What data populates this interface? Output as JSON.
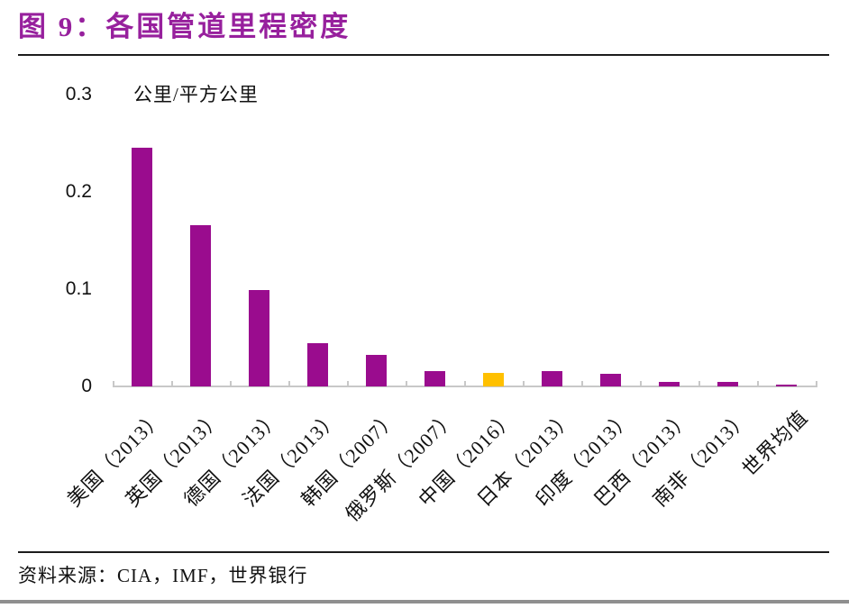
{
  "figure": {
    "title": "图 9：各国管道里程密度",
    "source_note": "资料来源：CIA，IMF，世界银行"
  },
  "chart_data": {
    "type": "bar",
    "title": "各国管道里程密度",
    "unit_label": "公里/平方公里",
    "ylabel": "公里/平方公里",
    "ylim": [
      0,
      0.3
    ],
    "y_tick_labels": [
      "0",
      "0.1",
      "0.2",
      "0.3"
    ],
    "grid": false,
    "legend": "none",
    "categories": [
      "美国（2013）",
      "英国（2013）",
      "德国（2013）",
      "法国（2013）",
      "韩国（2007）",
      "俄罗斯（2007）",
      "中国（2016）",
      "日本（2013）",
      "印度（2013）",
      "巴西（2013）",
      "南非（2013）",
      "世界均值"
    ],
    "values": [
      0.245,
      0.166,
      0.099,
      0.044,
      0.032,
      0.016,
      0.014,
      0.016,
      0.013,
      0.005,
      0.005,
      0.002
    ],
    "colors": {
      "default_bar": "#9A0C8E",
      "highlight_bar": "#FFC000",
      "highlight_index": 6,
      "title_text": "#97209D",
      "axis": "#C8C8C8",
      "text": "#111111"
    }
  }
}
